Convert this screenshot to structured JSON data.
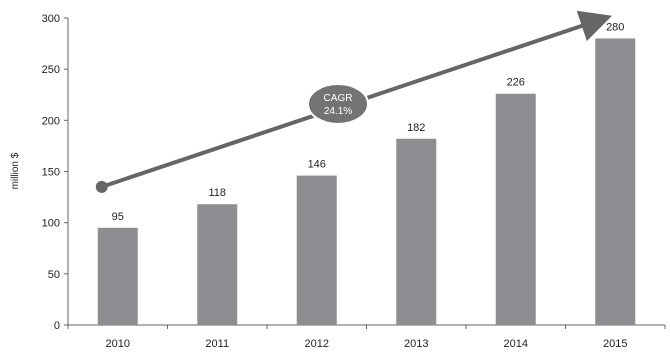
{
  "chart_data": {
    "type": "bar",
    "categories": [
      "2010",
      "2011",
      "2012",
      "2013",
      "2014",
      "2015"
    ],
    "values": [
      95,
      118,
      146,
      182,
      226,
      280
    ],
    "data_labels": [
      "95",
      "118",
      "146",
      "182",
      "226",
      "280"
    ],
    "title": "",
    "xlabel": "",
    "ylabel": "million $",
    "ylim": [
      0,
      300
    ],
    "yticks": [
      0,
      50,
      100,
      150,
      200,
      250,
      300
    ],
    "ytick_labels": [
      "0",
      "50",
      "100",
      "150",
      "200",
      "250",
      "300"
    ],
    "grid": false,
    "bar_color": "#8e8e92",
    "annotation": {
      "type": "trend-arrow",
      "from_category": "2010",
      "from_value": 135,
      "to_category": "2015",
      "to_value": 300,
      "color": "#666666",
      "badge_line1": "CAGR",
      "badge_line2": "24.1%"
    }
  }
}
